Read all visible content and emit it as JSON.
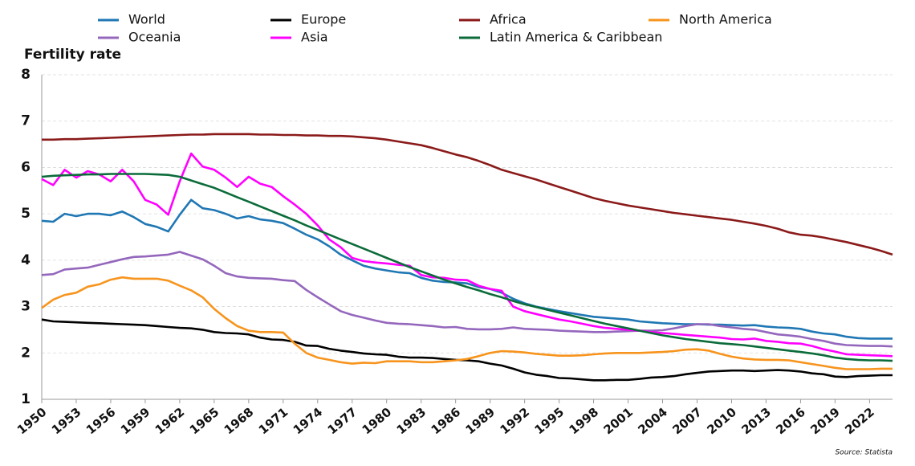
{
  "chart_data": {
    "type": "line",
    "y_label": "Fertility rate",
    "source": "Source: Statista",
    "xlim": [
      1950,
      2024
    ],
    "ylim": [
      1,
      8
    ],
    "yticks": [
      1,
      2,
      3,
      4,
      5,
      6,
      7,
      8
    ],
    "xticks": [
      1950,
      1953,
      1956,
      1959,
      1962,
      1965,
      1968,
      1971,
      1974,
      1977,
      1980,
      1983,
      1986,
      1989,
      1992,
      1995,
      1998,
      2001,
      2004,
      2007,
      2010,
      2013,
      2016,
      2019,
      2022
    ],
    "grid": true,
    "x": [
      1950,
      1951,
      1952,
      1953,
      1954,
      1955,
      1956,
      1957,
      1958,
      1959,
      1960,
      1961,
      1962,
      1963,
      1964,
      1965,
      1966,
      1967,
      1968,
      1969,
      1970,
      1971,
      1972,
      1973,
      1974,
      1975,
      1976,
      1977,
      1978,
      1979,
      1980,
      1981,
      1982,
      1983,
      1984,
      1985,
      1986,
      1987,
      1988,
      1989,
      1990,
      1991,
      1992,
      1993,
      1994,
      1995,
      1996,
      1997,
      1998,
      1999,
      2000,
      2001,
      2002,
      2003,
      2004,
      2005,
      2006,
      2007,
      2008,
      2009,
      2010,
      2011,
      2012,
      2013,
      2014,
      2015,
      2016,
      2017,
      2018,
      2019,
      2020,
      2021,
      2022,
      2023,
      2024
    ],
    "series": [
      {
        "name": "World",
        "color": "#1f77b4",
        "values": [
          4.85,
          4.83,
          5.0,
          4.95,
          5.0,
          5.0,
          4.97,
          5.05,
          4.93,
          4.78,
          4.72,
          4.62,
          4.98,
          5.3,
          5.12,
          5.08,
          5.0,
          4.9,
          4.95,
          4.88,
          4.85,
          4.8,
          4.68,
          4.55,
          4.45,
          4.3,
          4.12,
          4.0,
          3.88,
          3.82,
          3.78,
          3.74,
          3.72,
          3.62,
          3.56,
          3.53,
          3.52,
          3.5,
          3.42,
          3.38,
          3.3,
          3.17,
          3.07,
          3.0,
          2.95,
          2.9,
          2.86,
          2.82,
          2.78,
          2.76,
          2.74,
          2.72,
          2.68,
          2.66,
          2.64,
          2.63,
          2.62,
          2.62,
          2.61,
          2.61,
          2.6,
          2.59,
          2.6,
          2.57,
          2.55,
          2.54,
          2.52,
          2.46,
          2.42,
          2.4,
          2.35,
          2.32,
          2.31,
          2.31,
          2.31
        ]
      },
      {
        "name": "Europe",
        "color": "#000000",
        "values": [
          2.72,
          2.68,
          2.67,
          2.66,
          2.65,
          2.64,
          2.63,
          2.62,
          2.61,
          2.6,
          2.58,
          2.56,
          2.54,
          2.53,
          2.5,
          2.45,
          2.43,
          2.42,
          2.4,
          2.33,
          2.29,
          2.28,
          2.24,
          2.16,
          2.15,
          2.09,
          2.05,
          2.02,
          1.99,
          1.97,
          1.96,
          1.92,
          1.9,
          1.9,
          1.89,
          1.87,
          1.85,
          1.84,
          1.82,
          1.77,
          1.73,
          1.66,
          1.58,
          1.53,
          1.5,
          1.46,
          1.45,
          1.43,
          1.41,
          1.41,
          1.42,
          1.42,
          1.44,
          1.47,
          1.48,
          1.5,
          1.54,
          1.57,
          1.6,
          1.61,
          1.62,
          1.62,
          1.61,
          1.62,
          1.63,
          1.62,
          1.6,
          1.56,
          1.54,
          1.49,
          1.48,
          1.5,
          1.51,
          1.52,
          1.52
        ]
      },
      {
        "name": "Africa",
        "color": "#8b1a1a",
        "values": [
          6.6,
          6.6,
          6.61,
          6.61,
          6.62,
          6.63,
          6.64,
          6.65,
          6.66,
          6.67,
          6.68,
          6.69,
          6.7,
          6.71,
          6.71,
          6.72,
          6.72,
          6.72,
          6.72,
          6.71,
          6.71,
          6.7,
          6.7,
          6.69,
          6.69,
          6.68,
          6.68,
          6.67,
          6.65,
          6.63,
          6.6,
          6.56,
          6.52,
          6.48,
          6.42,
          6.35,
          6.28,
          6.22,
          6.14,
          6.05,
          5.95,
          5.88,
          5.81,
          5.74,
          5.66,
          5.58,
          5.5,
          5.42,
          5.34,
          5.28,
          5.23,
          5.18,
          5.14,
          5.1,
          5.06,
          5.02,
          4.99,
          4.96,
          4.93,
          4.9,
          4.87,
          4.83,
          4.79,
          4.74,
          4.68,
          4.6,
          4.55,
          4.53,
          4.49,
          4.44,
          4.39,
          4.33,
          4.27,
          4.2,
          4.12
        ]
      },
      {
        "name": "North America",
        "color": "#f7941d",
        "values": [
          2.97,
          3.15,
          3.25,
          3.3,
          3.43,
          3.48,
          3.58,
          3.63,
          3.6,
          3.6,
          3.6,
          3.56,
          3.45,
          3.35,
          3.2,
          2.95,
          2.75,
          2.58,
          2.48,
          2.45,
          2.45,
          2.44,
          2.2,
          2.0,
          1.9,
          1.85,
          1.8,
          1.77,
          1.79,
          1.78,
          1.82,
          1.82,
          1.82,
          1.8,
          1.8,
          1.82,
          1.84,
          1.87,
          1.93,
          2.0,
          2.04,
          2.03,
          2.01,
          1.98,
          1.96,
          1.94,
          1.94,
          1.95,
          1.97,
          1.99,
          2.0,
          2.0,
          2.0,
          2.01,
          2.02,
          2.04,
          2.07,
          2.08,
          2.05,
          1.98,
          1.92,
          1.88,
          1.86,
          1.85,
          1.85,
          1.84,
          1.8,
          1.76,
          1.72,
          1.68,
          1.65,
          1.65,
          1.65,
          1.66,
          1.66
        ]
      },
      {
        "name": "Oceania",
        "color": "#9467bd",
        "values": [
          3.68,
          3.7,
          3.8,
          3.82,
          3.84,
          3.9,
          3.96,
          4.02,
          4.07,
          4.08,
          4.1,
          4.12,
          4.18,
          4.1,
          4.02,
          3.88,
          3.72,
          3.65,
          3.62,
          3.61,
          3.6,
          3.57,
          3.55,
          3.36,
          3.2,
          3.05,
          2.9,
          2.82,
          2.76,
          2.7,
          2.65,
          2.63,
          2.62,
          2.6,
          2.58,
          2.55,
          2.56,
          2.52,
          2.51,
          2.51,
          2.52,
          2.55,
          2.52,
          2.51,
          2.5,
          2.48,
          2.47,
          2.46,
          2.45,
          2.45,
          2.46,
          2.47,
          2.48,
          2.48,
          2.49,
          2.53,
          2.58,
          2.62,
          2.62,
          2.58,
          2.55,
          2.52,
          2.5,
          2.45,
          2.4,
          2.38,
          2.35,
          2.3,
          2.26,
          2.2,
          2.17,
          2.16,
          2.15,
          2.15,
          2.14
        ]
      },
      {
        "name": "Asia",
        "color": "#ff00ff",
        "values": [
          5.75,
          5.62,
          5.95,
          5.78,
          5.92,
          5.85,
          5.7,
          5.95,
          5.7,
          5.3,
          5.2,
          4.98,
          5.7,
          6.3,
          6.02,
          5.95,
          5.78,
          5.58,
          5.8,
          5.65,
          5.58,
          5.38,
          5.2,
          5.0,
          4.75,
          4.45,
          4.28,
          4.05,
          3.98,
          3.95,
          3.93,
          3.9,
          3.88,
          3.68,
          3.63,
          3.62,
          3.58,
          3.57,
          3.45,
          3.38,
          3.34,
          3.0,
          2.9,
          2.84,
          2.78,
          2.72,
          2.68,
          2.63,
          2.58,
          2.54,
          2.52,
          2.5,
          2.48,
          2.45,
          2.43,
          2.41,
          2.39,
          2.37,
          2.35,
          2.33,
          2.3,
          2.29,
          2.31,
          2.26,
          2.24,
          2.21,
          2.2,
          2.15,
          2.08,
          2.03,
          1.97,
          1.96,
          1.95,
          1.94,
          1.93
        ]
      },
      {
        "name": "Latin America & Caribbean",
        "color": "#0b6b3a",
        "values": [
          5.8,
          5.82,
          5.83,
          5.84,
          5.85,
          5.85,
          5.86,
          5.86,
          5.86,
          5.86,
          5.85,
          5.84,
          5.8,
          5.72,
          5.64,
          5.56,
          5.46,
          5.36,
          5.26,
          5.16,
          5.06,
          4.96,
          4.86,
          4.75,
          4.65,
          4.55,
          4.45,
          4.35,
          4.25,
          4.15,
          4.05,
          3.95,
          3.85,
          3.76,
          3.67,
          3.58,
          3.5,
          3.42,
          3.35,
          3.27,
          3.2,
          3.12,
          3.05,
          2.99,
          2.93,
          2.87,
          2.81,
          2.75,
          2.69,
          2.63,
          2.58,
          2.53,
          2.48,
          2.43,
          2.38,
          2.34,
          2.3,
          2.27,
          2.24,
          2.21,
          2.19,
          2.17,
          2.14,
          2.11,
          2.08,
          2.05,
          2.02,
          1.99,
          1.95,
          1.9,
          1.87,
          1.85,
          1.84,
          1.84,
          1.83
        ]
      }
    ]
  }
}
